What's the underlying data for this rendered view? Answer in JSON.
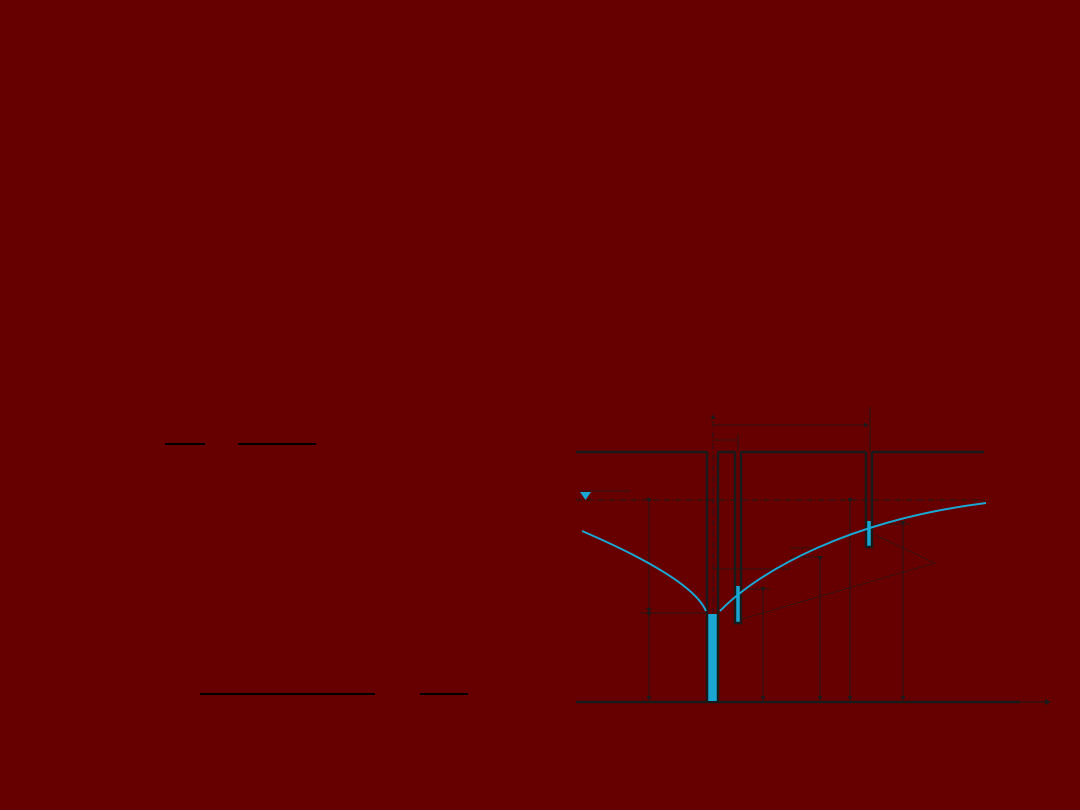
{
  "slide": {
    "background_color": "#660000"
  },
  "diagram": {
    "water_color": "#1aa7d4",
    "line_color": "#1a1a1a",
    "elements": [
      "pumping-well",
      "observation-piezometer-1",
      "observation-piezometer-2",
      "static-water-level",
      "drawdown-curve",
      "ground-surface",
      "impermeable-base"
    ]
  }
}
